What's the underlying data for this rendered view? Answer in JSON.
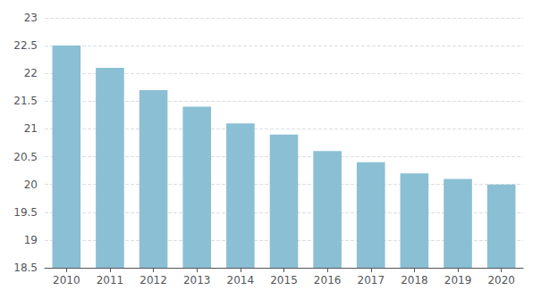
{
  "chart_data": {
    "type": "bar",
    "categories": [
      "2010",
      "2011",
      "2012",
      "2013",
      "2014",
      "2015",
      "2016",
      "2017",
      "2018",
      "2019",
      "2020"
    ],
    "values": [
      22.5,
      22.1,
      21.7,
      21.4,
      21.1,
      20.9,
      20.6,
      20.4,
      20.2,
      20.1,
      20.0
    ],
    "color": "#8bbfd4",
    "ylim": [
      18.5,
      23.0
    ],
    "yticks": [
      18.5,
      19,
      19.5,
      20,
      20.5,
      21,
      21.5,
      22,
      22.5,
      23
    ],
    "grid": true
  }
}
